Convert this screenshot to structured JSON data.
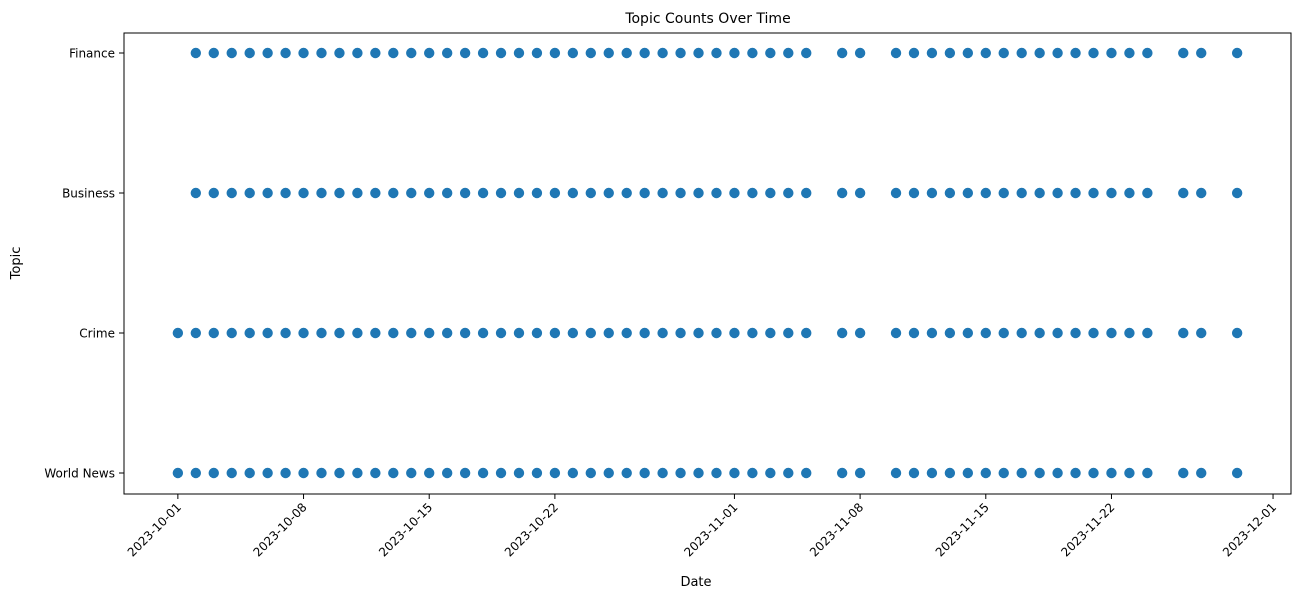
{
  "chart_data": {
    "type": "scatter",
    "title": "Topic Counts Over Time",
    "xlabel": "Date",
    "ylabel": "Topic",
    "x_ticks": [
      "2023-10-01",
      "2023-10-08",
      "2023-10-15",
      "2023-10-22",
      "2023-11-01",
      "2023-11-08",
      "2023-11-15",
      "2023-11-22",
      "2023-12-01"
    ],
    "y_categories": [
      "World News",
      "Crime",
      "Business",
      "Finance"
    ],
    "xlim": [
      "2023-09-28",
      "2023-12-02"
    ],
    "grid": false,
    "marker_color": "#1f77b4",
    "series": [
      {
        "topic": "Finance",
        "dates": [
          "2023-10-02",
          "2023-10-03",
          "2023-10-04",
          "2023-10-05",
          "2023-10-06",
          "2023-10-07",
          "2023-10-08",
          "2023-10-09",
          "2023-10-10",
          "2023-10-11",
          "2023-10-12",
          "2023-10-13",
          "2023-10-14",
          "2023-10-15",
          "2023-10-16",
          "2023-10-17",
          "2023-10-18",
          "2023-10-19",
          "2023-10-20",
          "2023-10-21",
          "2023-10-22",
          "2023-10-23",
          "2023-10-24",
          "2023-10-25",
          "2023-10-26",
          "2023-10-27",
          "2023-10-28",
          "2023-10-29",
          "2023-10-30",
          "2023-10-31",
          "2023-11-01",
          "2023-11-02",
          "2023-11-03",
          "2023-11-04",
          "2023-11-05",
          "2023-11-07",
          "2023-11-08",
          "2023-11-10",
          "2023-11-11",
          "2023-11-12",
          "2023-11-13",
          "2023-11-14",
          "2023-11-15",
          "2023-11-16",
          "2023-11-17",
          "2023-11-18",
          "2023-11-19",
          "2023-11-20",
          "2023-11-21",
          "2023-11-22",
          "2023-11-23",
          "2023-11-24",
          "2023-11-26",
          "2023-11-27",
          "2023-11-29"
        ]
      },
      {
        "topic": "Business",
        "dates": [
          "2023-10-02",
          "2023-10-03",
          "2023-10-04",
          "2023-10-05",
          "2023-10-06",
          "2023-10-07",
          "2023-10-08",
          "2023-10-09",
          "2023-10-10",
          "2023-10-11",
          "2023-10-12",
          "2023-10-13",
          "2023-10-14",
          "2023-10-15",
          "2023-10-16",
          "2023-10-17",
          "2023-10-18",
          "2023-10-19",
          "2023-10-20",
          "2023-10-21",
          "2023-10-22",
          "2023-10-23",
          "2023-10-24",
          "2023-10-25",
          "2023-10-26",
          "2023-10-27",
          "2023-10-28",
          "2023-10-29",
          "2023-10-30",
          "2023-10-31",
          "2023-11-01",
          "2023-11-02",
          "2023-11-03",
          "2023-11-04",
          "2023-11-05",
          "2023-11-07",
          "2023-11-08",
          "2023-11-10",
          "2023-11-11",
          "2023-11-12",
          "2023-11-13",
          "2023-11-14",
          "2023-11-15",
          "2023-11-16",
          "2023-11-17",
          "2023-11-18",
          "2023-11-19",
          "2023-11-20",
          "2023-11-21",
          "2023-11-22",
          "2023-11-23",
          "2023-11-24",
          "2023-11-26",
          "2023-11-27",
          "2023-11-29"
        ]
      },
      {
        "topic": "Crime",
        "dates": [
          "2023-10-01",
          "2023-10-02",
          "2023-10-03",
          "2023-10-04",
          "2023-10-05",
          "2023-10-06",
          "2023-10-07",
          "2023-10-08",
          "2023-10-09",
          "2023-10-10",
          "2023-10-11",
          "2023-10-12",
          "2023-10-13",
          "2023-10-14",
          "2023-10-15",
          "2023-10-16",
          "2023-10-17",
          "2023-10-18",
          "2023-10-19",
          "2023-10-20",
          "2023-10-21",
          "2023-10-22",
          "2023-10-23",
          "2023-10-24",
          "2023-10-25",
          "2023-10-26",
          "2023-10-27",
          "2023-10-28",
          "2023-10-29",
          "2023-10-30",
          "2023-10-31",
          "2023-11-01",
          "2023-11-02",
          "2023-11-03",
          "2023-11-04",
          "2023-11-05",
          "2023-11-07",
          "2023-11-08",
          "2023-11-10",
          "2023-11-11",
          "2023-11-12",
          "2023-11-13",
          "2023-11-14",
          "2023-11-15",
          "2023-11-16",
          "2023-11-17",
          "2023-11-18",
          "2023-11-19",
          "2023-11-20",
          "2023-11-21",
          "2023-11-22",
          "2023-11-23",
          "2023-11-24",
          "2023-11-26",
          "2023-11-27",
          "2023-11-29"
        ]
      },
      {
        "topic": "World News",
        "dates": [
          "2023-10-01",
          "2023-10-02",
          "2023-10-03",
          "2023-10-04",
          "2023-10-05",
          "2023-10-06",
          "2023-10-07",
          "2023-10-08",
          "2023-10-09",
          "2023-10-10",
          "2023-10-11",
          "2023-10-12",
          "2023-10-13",
          "2023-10-14",
          "2023-10-15",
          "2023-10-16",
          "2023-10-17",
          "2023-10-18",
          "2023-10-19",
          "2023-10-20",
          "2023-10-21",
          "2023-10-22",
          "2023-10-23",
          "2023-10-24",
          "2023-10-25",
          "2023-10-26",
          "2023-10-27",
          "2023-10-28",
          "2023-10-29",
          "2023-10-30",
          "2023-10-31",
          "2023-11-01",
          "2023-11-02",
          "2023-11-03",
          "2023-11-04",
          "2023-11-05",
          "2023-11-07",
          "2023-11-08",
          "2023-11-10",
          "2023-11-11",
          "2023-11-12",
          "2023-11-13",
          "2023-11-14",
          "2023-11-15",
          "2023-11-16",
          "2023-11-17",
          "2023-11-18",
          "2023-11-19",
          "2023-11-20",
          "2023-11-21",
          "2023-11-22",
          "2023-11-23",
          "2023-11-24",
          "2023-11-26",
          "2023-11-27",
          "2023-11-29"
        ]
      }
    ]
  }
}
